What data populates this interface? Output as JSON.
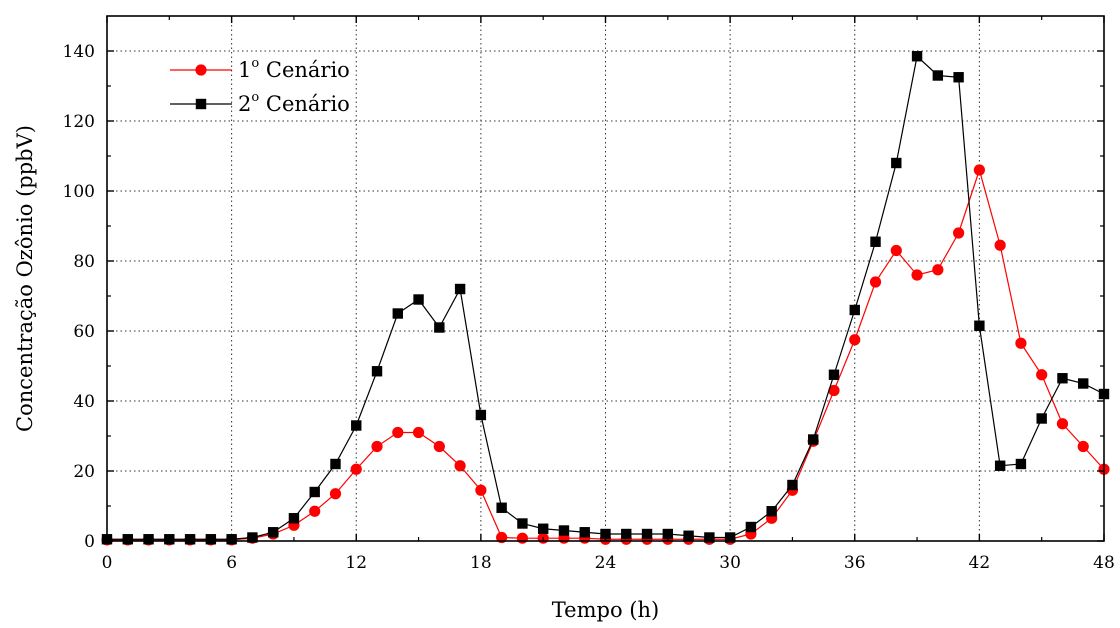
{
  "chart_data": {
    "type": "line",
    "xlabel": "Tempo (h)",
    "ylabel": "Concentração Ozônio (ppbV)",
    "xlim": [
      0,
      48
    ],
    "ylim": [
      0,
      150
    ],
    "xticks": [
      0,
      6,
      12,
      18,
      24,
      30,
      36,
      42,
      48
    ],
    "yticks": [
      0,
      20,
      40,
      60,
      80,
      100,
      120,
      140
    ],
    "grid": true,
    "legend_position": "top-left",
    "x": [
      0,
      1,
      2,
      3,
      4,
      5,
      6,
      7,
      8,
      9,
      10,
      11,
      12,
      13,
      14,
      15,
      16,
      17,
      18,
      19,
      20,
      21,
      22,
      23,
      24,
      25,
      26,
      27,
      28,
      29,
      30,
      31,
      32,
      33,
      34,
      35,
      36,
      37,
      38,
      39,
      40,
      41,
      42,
      43,
      44,
      45,
      46,
      47,
      48
    ],
    "series": [
      {
        "name": "1º Cenário",
        "label_main": "1",
        "label_sup": "o",
        "label_rest": " Cenário",
        "color": "#ff0000",
        "marker": "circle",
        "values": [
          0.3,
          0.3,
          0.3,
          0.3,
          0.3,
          0.3,
          0.3,
          0.8,
          2.0,
          4.5,
          8.5,
          13.5,
          20.5,
          27.0,
          31.0,
          31.0,
          27.0,
          21.5,
          14.5,
          1.0,
          0.8,
          0.8,
          0.8,
          0.8,
          0.5,
          0.5,
          0.5,
          0.5,
          0.5,
          0.5,
          0.5,
          2.0,
          6.5,
          14.5,
          28.5,
          43.0,
          57.5,
          74.0,
          83.0,
          76.0,
          77.5,
          88.0,
          106.0,
          84.5,
          56.5,
          47.5,
          33.5,
          27.0,
          20.5
        ]
      },
      {
        "name": "2º Cenário",
        "label_main": "2",
        "label_sup": "o",
        "label_rest": " Cenário",
        "color": "#000000",
        "marker": "square",
        "values": [
          0.5,
          0.5,
          0.5,
          0.5,
          0.5,
          0.5,
          0.5,
          1.0,
          2.5,
          6.5,
          14.0,
          22.0,
          33.0,
          48.5,
          65.0,
          69.0,
          61.0,
          72.0,
          36.0,
          9.5,
          5.0,
          3.5,
          3.0,
          2.5,
          2.0,
          2.0,
          2.0,
          2.0,
          1.5,
          1.0,
          1.0,
          4.0,
          8.5,
          16.0,
          29.0,
          47.5,
          66.0,
          85.5,
          108.0,
          138.5,
          133.0,
          132.5,
          61.5,
          21.5,
          22.0,
          35.0,
          46.5,
          45.0,
          42.0
        ]
      }
    ]
  }
}
